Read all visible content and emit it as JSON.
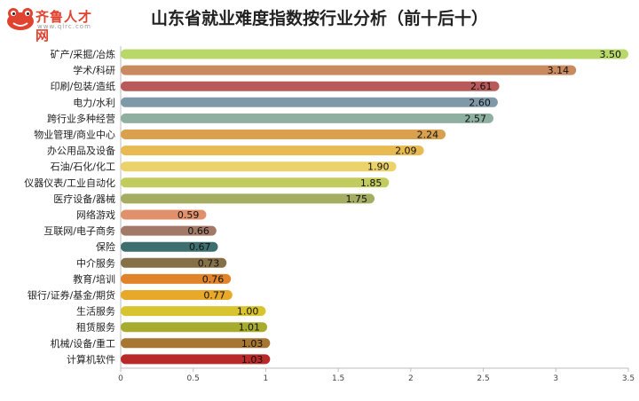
{
  "header": {
    "title": "山东省就业难度指数按行业分析（前十后十）",
    "logo_text": "齐鲁人才网",
    "logo_domain": "www.qlrc.com"
  },
  "chart_data": {
    "type": "bar",
    "orientation": "horizontal",
    "title": "山东省就业难度指数按行业分析（前十后十）",
    "xlabel": "",
    "ylabel": "",
    "xlim": [
      0,
      3.5
    ],
    "x_ticks": [
      "0",
      "0.5",
      "1",
      "1.5",
      "2",
      "2.5",
      "3",
      "3.5"
    ],
    "grid": false,
    "legend": "none",
    "categories": [
      "矿产/采掘/冶炼",
      "学术/科研",
      "印刷/包装/造纸",
      "电力/水利",
      "跨行业多种经营",
      "物业管理/商业中心",
      "办公用品及设备",
      "石油/石化/化工",
      "仪器仪表/工业自动化",
      "医疗设备/器械",
      "网络游戏",
      "互联网/电子商务",
      "保险",
      "中介服务",
      "教育/培训",
      "银行/证券/基金/期货",
      "生活服务",
      "租赁服务",
      "机械/设备/重工",
      "计算机软件"
    ],
    "values": [
      3.5,
      3.14,
      2.61,
      2.6,
      2.57,
      2.24,
      2.09,
      1.9,
      1.85,
      1.75,
      0.59,
      0.66,
      0.67,
      0.73,
      0.76,
      0.77,
      1.0,
      1.01,
      1.03,
      1.03
    ],
    "value_labels": [
      "3.50",
      "3.14",
      "2.61",
      "2.60",
      "2.57",
      "2.24",
      "2.09",
      "1.90",
      "1.85",
      "1.75",
      "0.59",
      "0.66",
      "0.67",
      "0.73",
      "0.76",
      "0.77",
      "1.00",
      "1.01",
      "1.03",
      "1.03"
    ],
    "colors": [
      "#b8d96a",
      "#c88a5e",
      "#b85a5a",
      "#7f99a8",
      "#8fb0a0",
      "#d9a04e",
      "#e8ba52",
      "#ecd26a",
      "#c2cc5e",
      "#a5ad62",
      "#e0906a",
      "#a27866",
      "#3e6e6e",
      "#857048",
      "#e0832a",
      "#e8a82a",
      "#d8c42e",
      "#a8ac2e",
      "#a67632",
      "#b82a2a"
    ]
  }
}
